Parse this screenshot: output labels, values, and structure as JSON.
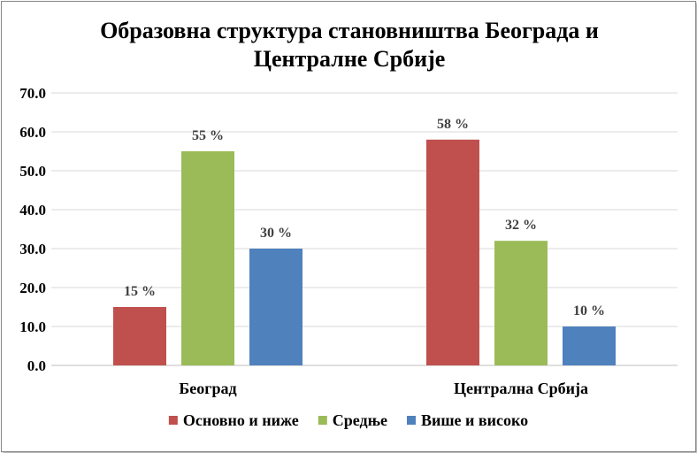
{
  "chart_data": {
    "type": "bar",
    "title_lines": [
      "Образовна структура  становништва Београда и",
      "Централне Србије"
    ],
    "categories": [
      "Београд",
      "Централна Србија"
    ],
    "series": [
      {
        "name": "Основно и ниже",
        "color": "#c0504d",
        "values": [
          15,
          58
        ],
        "labels": [
          "15 %",
          "58 %"
        ]
      },
      {
        "name": "Средње",
        "color": "#9bbb59",
        "values": [
          55,
          32
        ],
        "labels": [
          "55 %",
          "32 %"
        ]
      },
      {
        "name": "Више и високо",
        "color": "#4f81bd",
        "values": [
          30,
          10
        ],
        "labels": [
          "30 %",
          "10 %"
        ]
      }
    ],
    "y_ticks": [
      "0.0",
      "10.0",
      "20.0",
      "30.0",
      "40.0",
      "50.0",
      "60.0",
      "70.0"
    ],
    "ylim": [
      0,
      70
    ],
    "grid": true,
    "legend_position": "bottom"
  }
}
